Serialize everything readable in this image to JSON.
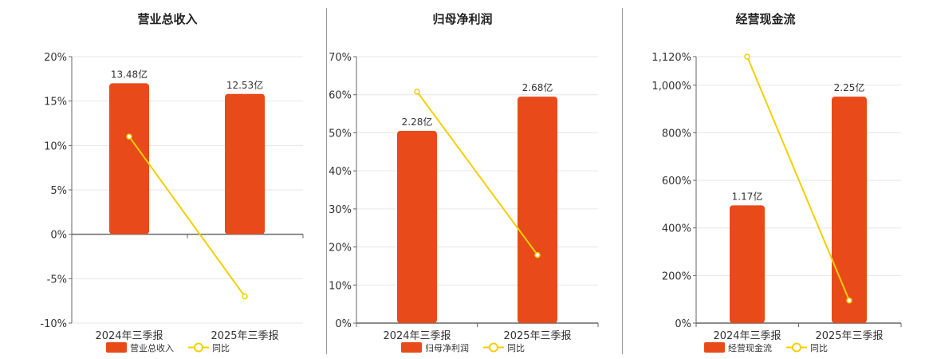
{
  "colors": {
    "bar": "#e84a1a",
    "line": "#f2d000",
    "grid": "#e6e6e6",
    "axis": "#666666",
    "text": "#333333"
  },
  "chart_data": [
    {
      "type": "bar",
      "title": "营业总收入",
      "categories": [
        "2024年三季报",
        "2025年三季报"
      ],
      "ylim": [
        -10,
        20
      ],
      "yticks": [
        -10,
        -5,
        0,
        5,
        10,
        15,
        20
      ],
      "ytick_labels": [
        "-10%",
        "-5%",
        "0%",
        "5%",
        "10%",
        "15%",
        "20%"
      ],
      "grid": true,
      "legend_position": "bottom",
      "series": [
        {
          "name": "营业总收入",
          "type": "bar",
          "values": [
            17.0,
            15.8
          ],
          "data_labels": [
            "13.48亿",
            "12.53亿"
          ]
        },
        {
          "name": "同比",
          "type": "line",
          "values": [
            11.0,
            -7.0
          ]
        }
      ]
    },
    {
      "type": "bar",
      "title": "归母净利润",
      "categories": [
        "2024年三季报",
        "2025年三季报"
      ],
      "ylim": [
        0,
        70
      ],
      "yticks": [
        0,
        10,
        20,
        30,
        40,
        50,
        60,
        70
      ],
      "ytick_labels": [
        "0%",
        "10%",
        "20%",
        "30%",
        "40%",
        "50%",
        "60%",
        "70%"
      ],
      "grid": true,
      "legend_position": "bottom",
      "series": [
        {
          "name": "归母净利润",
          "type": "bar",
          "values": [
            50.5,
            59.5
          ],
          "data_labels": [
            "2.28亿",
            "2.68亿"
          ]
        },
        {
          "name": "同比",
          "type": "line",
          "values": [
            60.8,
            17.9
          ]
        }
      ]
    },
    {
      "type": "bar",
      "title": "经营现金流",
      "categories": [
        "2024年三季报",
        "2025年三季报"
      ],
      "ylim": [
        0,
        1120
      ],
      "yticks": [
        0,
        200,
        400,
        600,
        800,
        1000,
        1120
      ],
      "ytick_labels": [
        "0%",
        "200%",
        "400%",
        "600%",
        "800%",
        "1,000%",
        "1,120%"
      ],
      "grid": true,
      "legend_position": "bottom",
      "series": [
        {
          "name": "经营现金流",
          "type": "bar",
          "values": [
            495,
            952
          ],
          "data_labels": [
            "1.17亿",
            "2.25亿"
          ]
        },
        {
          "name": "同比",
          "type": "line",
          "values": [
            1120,
            95
          ]
        }
      ]
    }
  ]
}
